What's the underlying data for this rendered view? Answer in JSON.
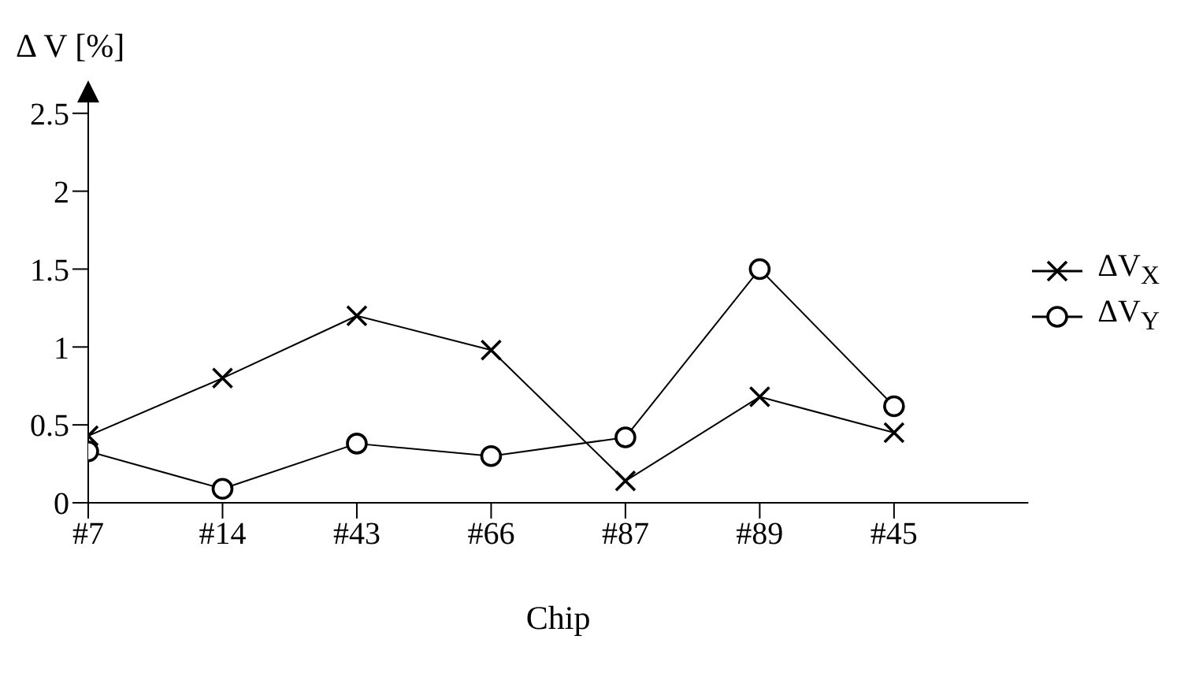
{
  "chart_data": {
    "type": "line",
    "ylabel": "Δ V [%]",
    "xlabel": "Chip",
    "categories": [
      "#7",
      "#14",
      "#43",
      "#66",
      "#87",
      "#89",
      "#45"
    ],
    "series": [
      {
        "name": "ΔV$_{X}$",
        "color": "#000000",
        "marker": "cross",
        "values": [
          0.43,
          0.8,
          1.2,
          0.98,
          0.14,
          0.68,
          0.45
        ]
      },
      {
        "name": "ΔV$_{Y}$",
        "color": "#000000",
        "marker": "circle",
        "values": [
          0.33,
          0.09,
          0.38,
          0.3,
          0.42,
          1.5,
          0.62
        ]
      }
    ],
    "ylim": [
      0,
      2.6
    ],
    "yticks": [
      0,
      0.5,
      1,
      1.5,
      2,
      2.5
    ],
    "grid": false,
    "legend": "right"
  }
}
